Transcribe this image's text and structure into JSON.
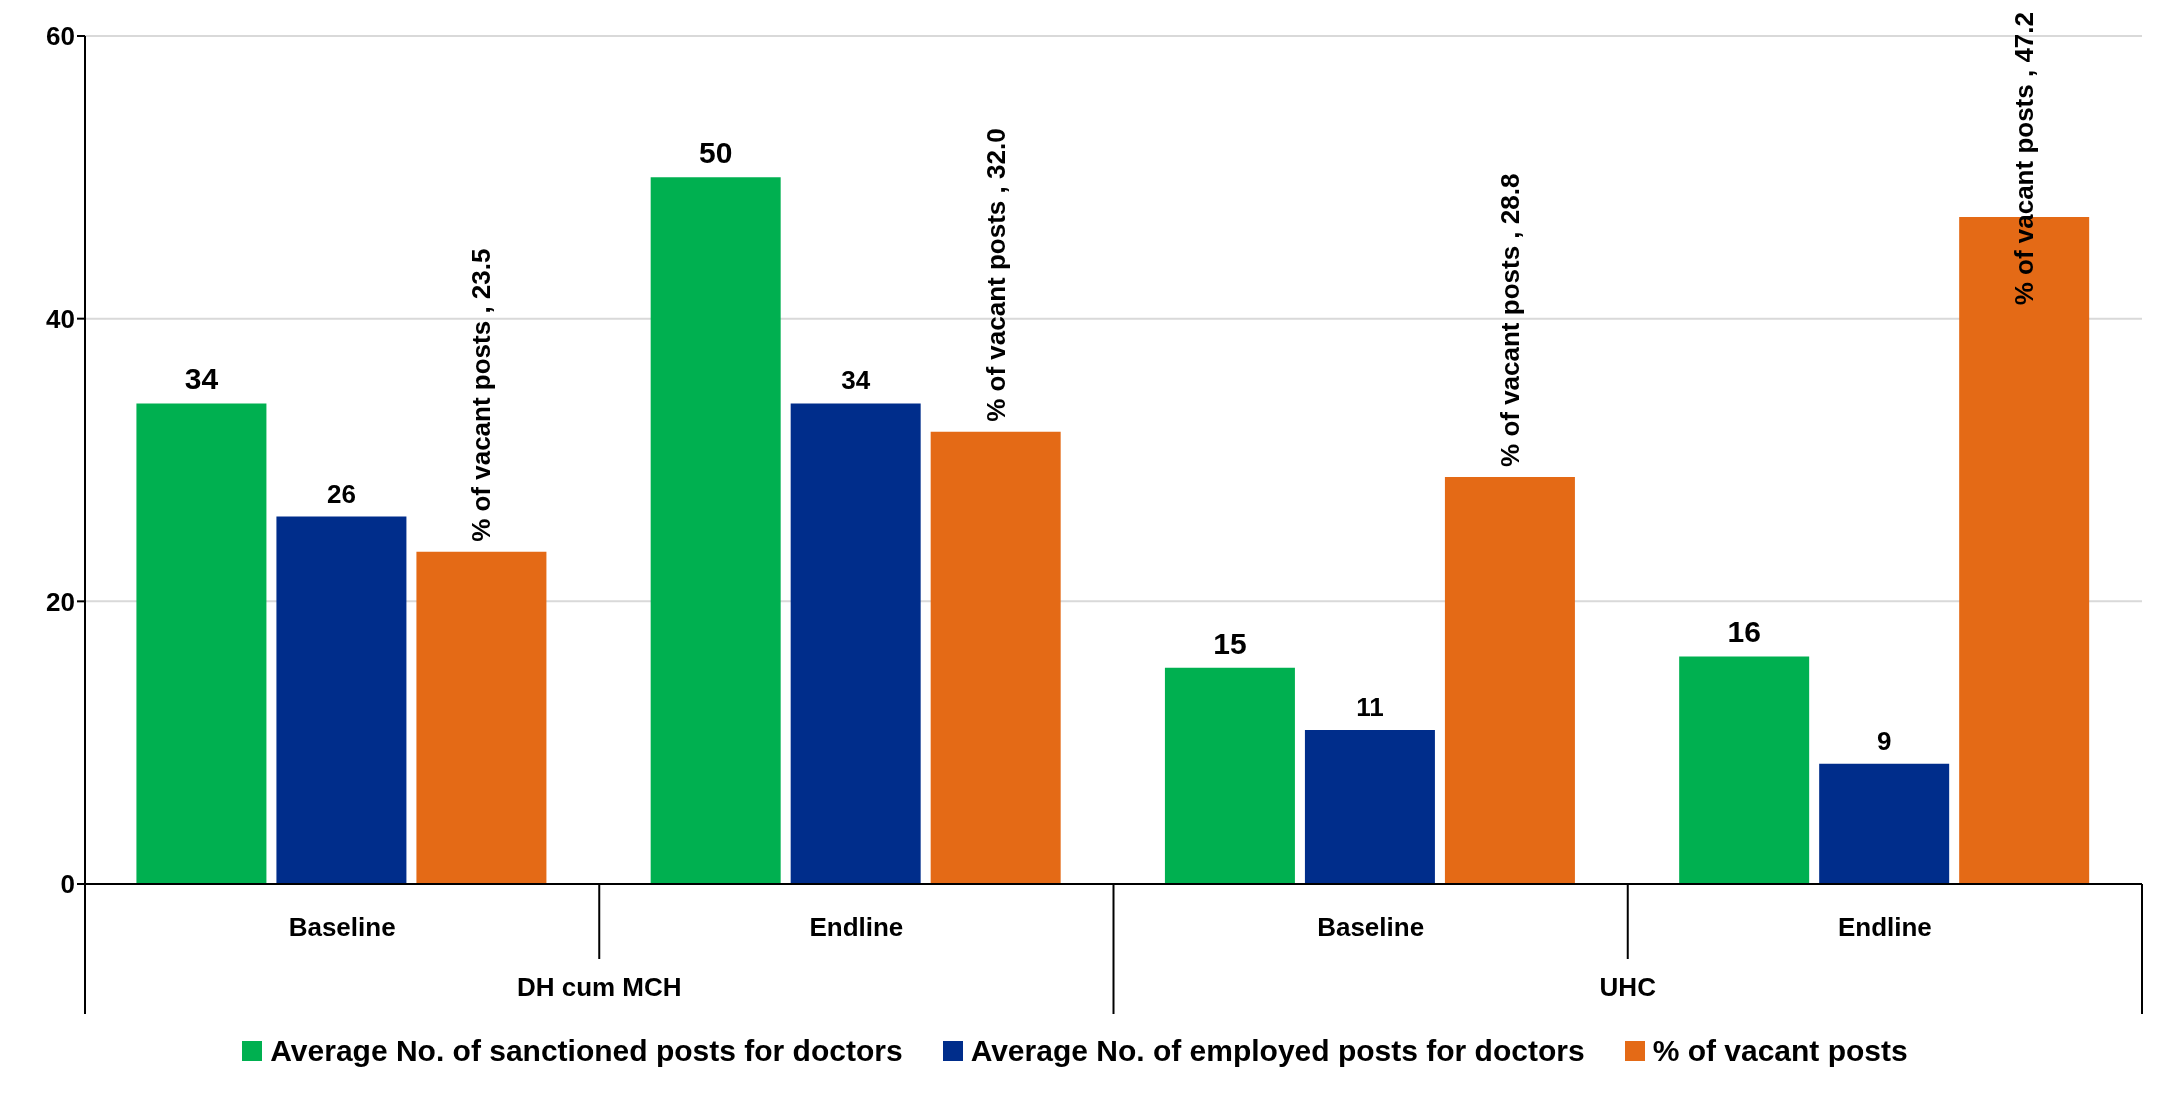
{
  "chart_data": {
    "type": "bar",
    "categories": [
      "Baseline",
      "Endline",
      "Baseline",
      "Endline"
    ],
    "annotations": [
      "DH cum MCH",
      "UHC"
    ],
    "series": [
      {
        "name": "Average No. of sanctioned posts for doctors",
        "color": "#00b050",
        "values": [
          34,
          50,
          15.3,
          16.1
        ],
        "value_labels": [
          "34",
          "50",
          "15",
          "16"
        ]
      },
      {
        "name": "Average No. of employed posts for doctors",
        "color": "#002d8b",
        "values": [
          26,
          34,
          10.9,
          8.5
        ],
        "value_labels": [
          "26",
          "34",
          "11",
          "9"
        ]
      },
      {
        "name": "% of vacant posts",
        "color": "#e46a16",
        "values": [
          23.5,
          32.0,
          28.8,
          47.2
        ],
        "value_labels": [
          "% of vacant posts , 23.5",
          "% of vacant posts , 32.0",
          "% of vacant posts , 28.8",
          "% of vacant posts , 47.2"
        ]
      }
    ],
    "ylim": [
      0,
      60
    ],
    "yticks": [
      0,
      20,
      40,
      60
    ],
    "grid": "y",
    "legend": "bottom"
  }
}
